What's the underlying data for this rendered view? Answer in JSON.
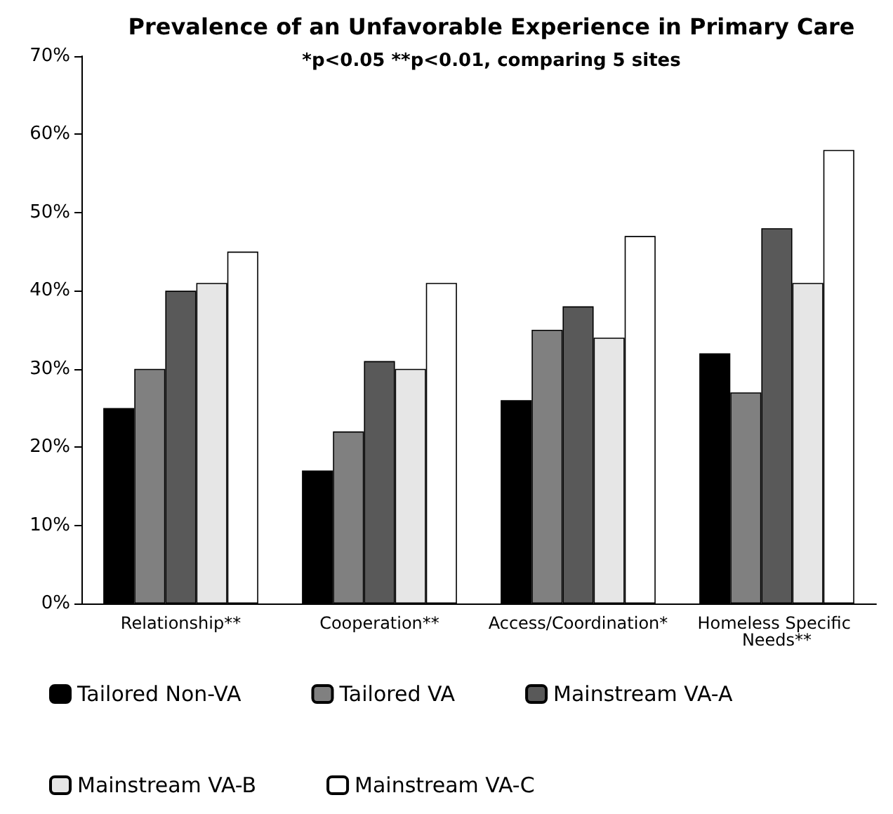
{
  "chart_data": {
    "type": "bar",
    "title": "Prevalence of an Unfavorable Experience in Primary Care",
    "subtitle": "*p<0.05 **p<0.01, comparing 5 sites",
    "categories": [
      "Relationship**",
      "Cooperation**",
      "Access/Coordination*",
      "Homeless Specific Needs**"
    ],
    "series": [
      {
        "name": "Tailored Non-VA",
        "color": "#000000",
        "values": [
          25,
          17,
          26,
          32
        ]
      },
      {
        "name": "Tailored VA",
        "color": "#808080",
        "values": [
          30,
          22,
          35,
          27
        ]
      },
      {
        "name": "Mainstream VA-A",
        "color": "#595959",
        "values": [
          40,
          31,
          38,
          48
        ]
      },
      {
        "name": "Mainstream VA-B",
        "color": "#e6e6e6",
        "values": [
          41,
          30,
          34,
          41
        ]
      },
      {
        "name": "Mainstream VA-C",
        "color": "#ffffff",
        "values": [
          45,
          41,
          47,
          58
        ]
      }
    ],
    "ylim": [
      0,
      70
    ],
    "yticks": [
      {
        "value": 0,
        "label": "0%"
      },
      {
        "value": 10,
        "label": "10%"
      },
      {
        "value": 20,
        "label": "20%"
      },
      {
        "value": 30,
        "label": "30%"
      },
      {
        "value": 40,
        "label": "40%"
      },
      {
        "value": 50,
        "label": "50%"
      },
      {
        "value": 60,
        "label": "60%"
      },
      {
        "value": 70,
        "label": "70%"
      }
    ],
    "grid": false,
    "legend": "bottom"
  }
}
